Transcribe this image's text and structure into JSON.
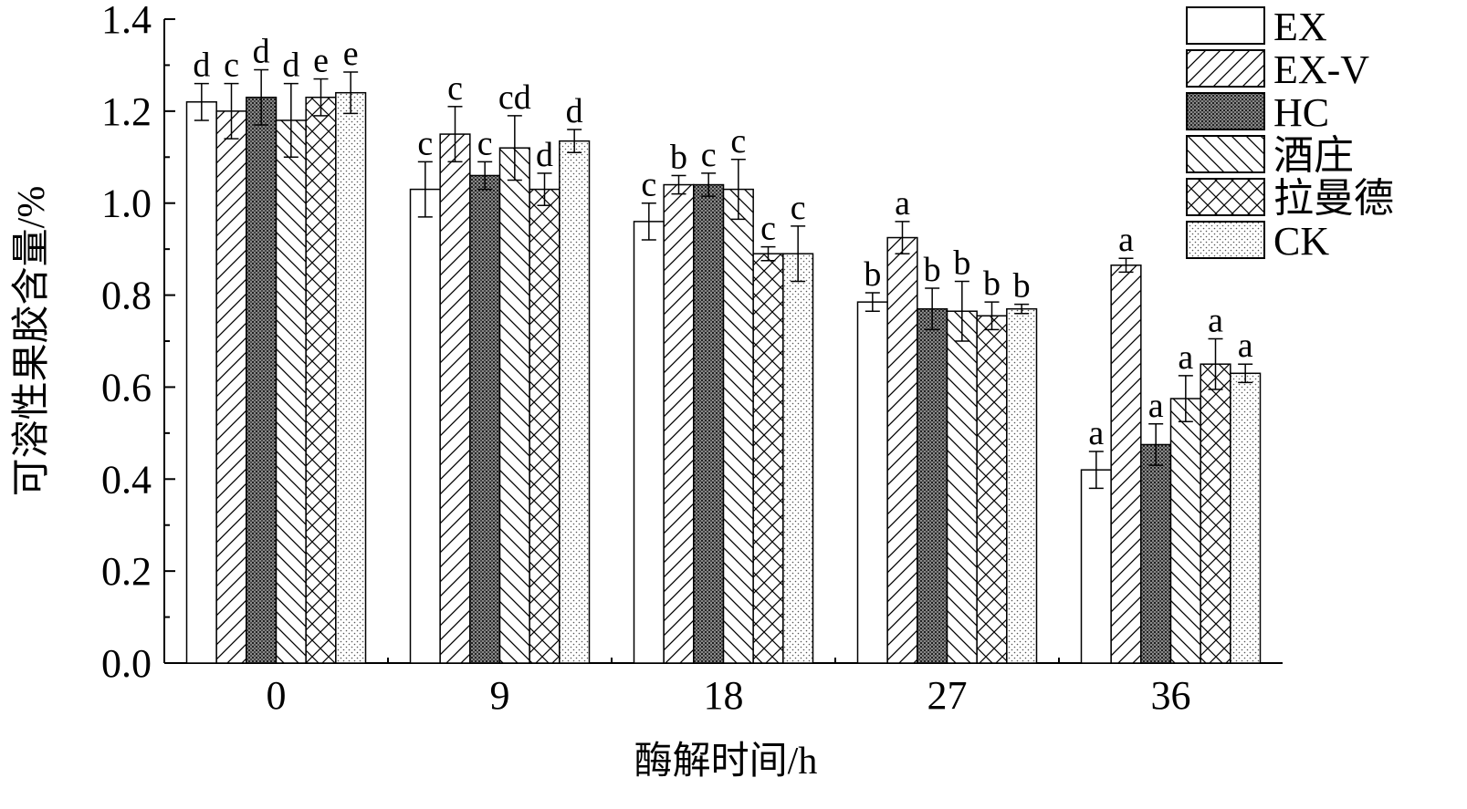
{
  "chart_data": {
    "type": "bar",
    "xlabel": "酶解时间/h",
    "ylabel": "可溶性果胶含量/%",
    "categories": [
      "0",
      "9",
      "18",
      "27",
      "36"
    ],
    "ylim": [
      0,
      1.4
    ],
    "yticks": [
      {
        "value": 0,
        "label": "0.0"
      },
      0.2,
      0.4,
      0.6,
      0.8,
      {
        "value": 1,
        "label": "1.0"
      },
      1.2,
      1.4
    ],
    "legend": "upper right",
    "series": [
      {
        "name": "EX",
        "color": "#000000",
        "pattern": "none",
        "values": [
          1.22,
          1.03,
          0.96,
          0.785,
          0.42
        ],
        "errors": [
          0.04,
          0.06,
          0.04,
          0.02,
          0.04
        ],
        "letters": [
          "d",
          "c",
          "c",
          "b",
          "a"
        ]
      },
      {
        "name": "EX-V",
        "color": "#000000",
        "pattern": "forward",
        "values": [
          1.2,
          1.15,
          1.04,
          0.925,
          0.865
        ],
        "errors": [
          0.06,
          0.06,
          0.02,
          0.035,
          0.015
        ],
        "letters": [
          "c",
          "c",
          "b",
          "a",
          "a"
        ]
      },
      {
        "name": "HC",
        "color": "#000000",
        "pattern": "dense",
        "values": [
          1.23,
          1.06,
          1.04,
          0.77,
          0.475
        ],
        "errors": [
          0.06,
          0.03,
          0.025,
          0.045,
          0.045
        ],
        "letters": [
          "d",
          "c",
          "c",
          "b",
          "a"
        ]
      },
      {
        "name": "酒庄",
        "color": "#000000",
        "pattern": "backward",
        "values": [
          1.18,
          1.12,
          1.03,
          0.765,
          0.575
        ],
        "errors": [
          0.08,
          0.07,
          0.065,
          0.065,
          0.05
        ],
        "letters": [
          "d",
          "cd",
          "c",
          "b",
          "a"
        ]
      },
      {
        "name": "拉曼德",
        "color": "#000000",
        "pattern": "cross",
        "values": [
          1.23,
          1.03,
          0.89,
          0.755,
          0.65
        ],
        "errors": [
          0.04,
          0.035,
          0.015,
          0.03,
          0.055
        ],
        "letters": [
          "e",
          "d",
          "c",
          "b",
          "a"
        ]
      },
      {
        "name": "CK",
        "color": "#000000",
        "pattern": "dots",
        "values": [
          1.24,
          1.135,
          0.89,
          0.77,
          0.63
        ],
        "errors": [
          0.045,
          0.025,
          0.06,
          0.01,
          0.02
        ],
        "letters": [
          "e",
          "d",
          "c",
          "b",
          "a"
        ]
      }
    ]
  }
}
